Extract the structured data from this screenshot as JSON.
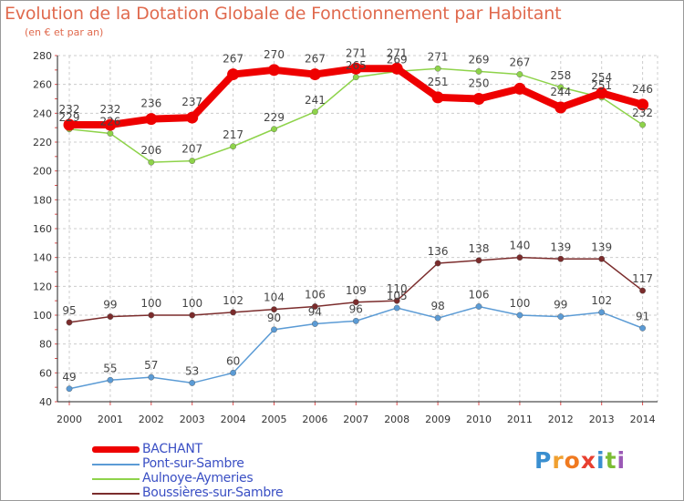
{
  "chart_data": {
    "type": "line",
    "title": "Evolution de la Dotation Globale de Fonctionnement par Habitant",
    "subtitle": "(en € et par an)",
    "xlabel": "",
    "ylabel": "",
    "ylim": [
      40,
      280
    ],
    "yticks": [
      40,
      60,
      80,
      100,
      120,
      140,
      160,
      180,
      200,
      220,
      240,
      260,
      280
    ],
    "grid": true,
    "categories": [
      "2000",
      "2001",
      "2002",
      "2003",
      "2004",
      "2005",
      "2006",
      "2007",
      "2008",
      "2009",
      "2010",
      "2011",
      "2012",
      "2013",
      "2014"
    ],
    "series": [
      {
        "name": "BACHANT",
        "color": "#ee0000",
        "emphasis": true,
        "values": [
          232,
          232,
          236,
          237,
          267,
          270,
          267,
          271,
          271,
          251,
          250,
          257,
          244,
          254,
          246
        ],
        "labels": [
          "232",
          "232",
          "236",
          "237",
          "267",
          "270",
          "267",
          "271",
          "271",
          "251",
          "250",
          "",
          "244",
          "254",
          "246"
        ]
      },
      {
        "name": "Pont-sur-Sambre",
        "color": "#5b9bd5",
        "values": [
          49,
          55,
          57,
          53,
          60,
          90,
          94,
          96,
          105,
          98,
          106,
          100,
          99,
          102,
          91
        ],
        "labels": [
          "49",
          "55",
          "57",
          "53",
          "60",
          "90",
          "94",
          "96",
          "105",
          "98",
          "106",
          "100",
          "99",
          "102",
          "91"
        ]
      },
      {
        "name": "Aulnoye-Aymeries",
        "color": "#8ed34a",
        "values": [
          229,
          226,
          206,
          207,
          217,
          229,
          241,
          265,
          269,
          271,
          269,
          267,
          258,
          251,
          232
        ],
        "labels": [
          "229",
          "226",
          "206",
          "207",
          "217",
          "229",
          "241",
          "265",
          "269",
          "271",
          "269",
          "267",
          "258",
          "251",
          "232"
        ]
      },
      {
        "name": "Boussières-sur-Sambre",
        "color": "#7b2c2c",
        "values": [
          95,
          99,
          100,
          100,
          102,
          104,
          106,
          109,
          110,
          136,
          138,
          140,
          139,
          139,
          117
        ],
        "labels": [
          "95",
          "99",
          "100",
          "100",
          "102",
          "104",
          "106",
          "109",
          "110",
          "136",
          "138",
          "140",
          "139",
          "139",
          "117"
        ]
      }
    ],
    "legend_position": "bottom-left"
  },
  "legend": {
    "items": [
      {
        "label": "BACHANT",
        "color": "#ee0000"
      },
      {
        "label": "Pont-sur-Sambre",
        "color": "#5b9bd5"
      },
      {
        "label": "Aulnoye-Aymeries",
        "color": "#8ed34a"
      },
      {
        "label": "Boussières-sur-Sambre",
        "color": "#7b2c2c"
      }
    ]
  },
  "logo": {
    "letters": [
      "P",
      "r",
      "o",
      "x",
      "i",
      "t",
      "i"
    ],
    "colors": [
      "#3a8fd0",
      "#f0a030",
      "#f07a20",
      "#e84030",
      "#3a8fd0",
      "#7cbd35",
      "#9b59b6"
    ]
  }
}
